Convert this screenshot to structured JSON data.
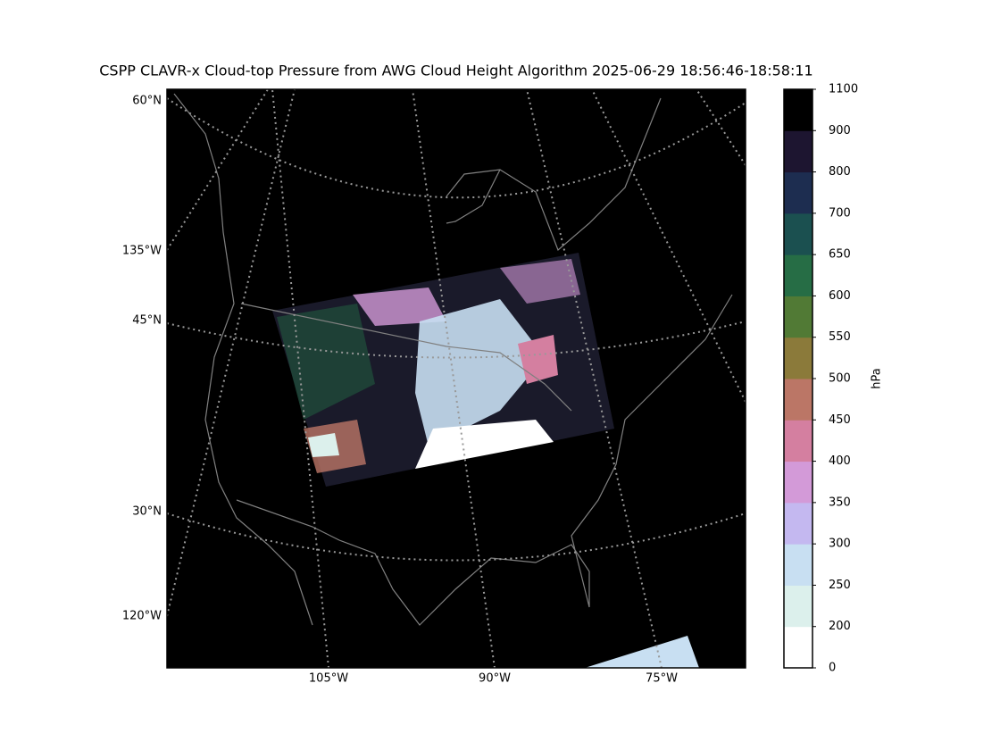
{
  "title": "CSPP CLAVR-x Cloud-top Pressure from AWG Cloud Height Algorithm 2025-06-29 18:56:46-18:58:11",
  "map": {
    "lat_labels": [
      "60°N",
      "135°W",
      "45°N",
      "30°N",
      "120°W"
    ],
    "lon_labels": [
      "105°W",
      "90°W",
      "75°W"
    ]
  },
  "colorbar": {
    "label": "hPa",
    "ticks": [
      0,
      200,
      250,
      300,
      350,
      400,
      450,
      500,
      550,
      600,
      650,
      700,
      800,
      900,
      1100
    ],
    "colors": [
      "#ffffff",
      "#dcf0ec",
      "#c8dff2",
      "#c4b8f0",
      "#d39ad8",
      "#d47fa0",
      "#bb7666",
      "#8b7a3a",
      "#517a35",
      "#266d45",
      "#1b5050",
      "#1d2d50",
      "#1d1530",
      "#000000"
    ]
  }
}
